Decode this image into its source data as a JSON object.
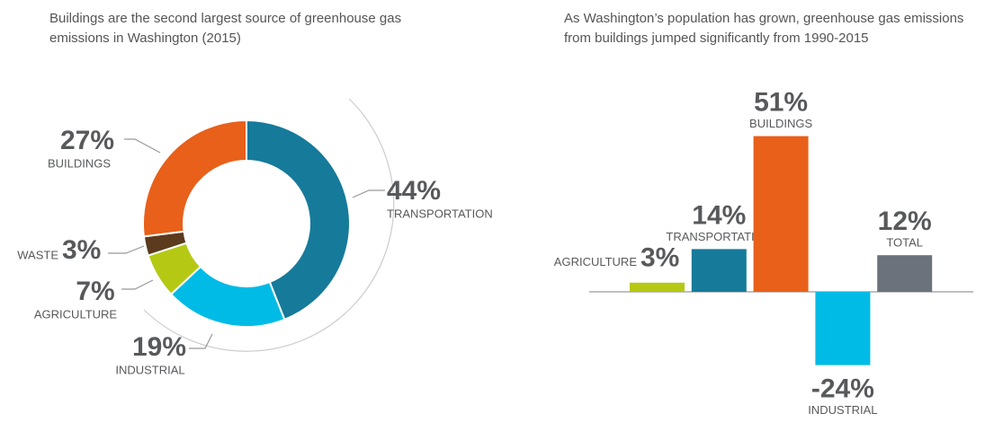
{
  "chart_data": [
    {
      "type": "pie",
      "title": "Buildings are the second largest source of greenhouse gas emissions in Washington (2015)",
      "categories": [
        "TRANSPORTATION",
        "INDUSTRIAL",
        "AGRICULTURE",
        "WASTE",
        "BUILDINGS"
      ],
      "values": [
        44,
        19,
        7,
        3,
        27
      ],
      "value_labels": [
        "44%",
        "19%",
        "7%",
        "3%",
        "27%"
      ],
      "colors": [
        "#167a9a",
        "#00bbe6",
        "#b5c914",
        "#5b3a1e",
        "#e8601a"
      ]
    },
    {
      "type": "bar",
      "title": "As Washington’s population has grown, greenhouse gas emissions from buildings jumped significantly from 1990-2015",
      "categories": [
        "AGRICULTURE",
        "TRANSPORTATION",
        "BUILDINGS",
        "INDUSTRIAL",
        "TOTAL"
      ],
      "values": [
        3,
        14,
        51,
        -24,
        12
      ],
      "value_labels": [
        "3%",
        "14%",
        "51%",
        "-24%",
        "12%"
      ],
      "colors": [
        "#b5c914",
        "#167a9a",
        "#e8601a",
        "#00bbe6",
        "#6b727b"
      ]
    }
  ]
}
